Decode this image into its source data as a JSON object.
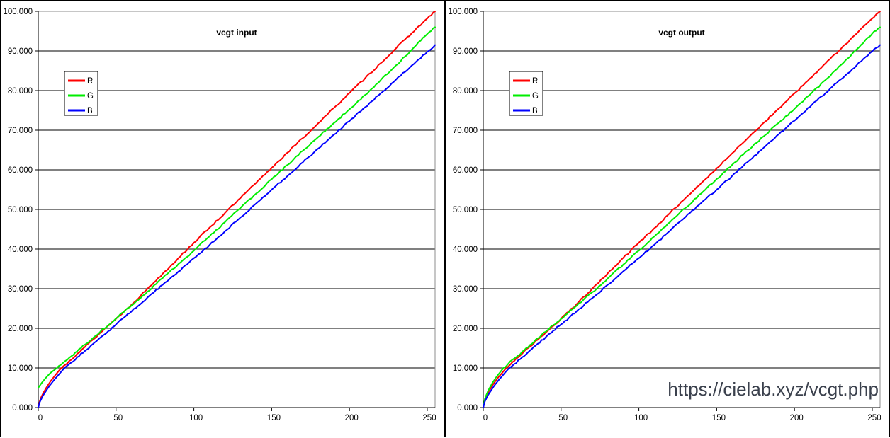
{
  "page": {
    "background": "#ffffff"
  },
  "watermark": {
    "text": "https://cielab.xyz/vcgt.php",
    "color": "#3b414d"
  },
  "chart_data": [
    {
      "type": "line",
      "title": "vcgt input",
      "xlabel": "",
      "ylabel": "",
      "xlim": [
        0,
        255
      ],
      "ylim": [
        0,
        100
      ],
      "grid": "horizontal",
      "grid_color": "#000000",
      "frame_color": "#8c8c8c",
      "x_ticks": [
        0,
        50,
        100,
        150,
        200,
        250
      ],
      "x_tick_labels": [
        "0",
        "50",
        "100",
        "150",
        "200",
        "250"
      ],
      "y_ticks": [
        100,
        90,
        80,
        70,
        60,
        50,
        40,
        30,
        20,
        10,
        0
      ],
      "y_tick_labels": [
        "100.000",
        "90.000",
        "80.000",
        "70.000",
        "60.000",
        "50.000",
        "40.000",
        "30.000",
        "20.000",
        "10.000",
        "0.000"
      ],
      "legend_position": "upper-left",
      "legend": [
        "R",
        "G",
        "B"
      ],
      "series": [
        {
          "name": "R",
          "color": "#ff0000",
          "points": [
            [
              0,
              0
            ],
            [
              1,
              1.7
            ],
            [
              2,
              2.7
            ],
            [
              3,
              3.5
            ],
            [
              4,
              4.2
            ],
            [
              5,
              4.9
            ],
            [
              6,
              5.5
            ],
            [
              7,
              6.1
            ],
            [
              8,
              6.7
            ],
            [
              9,
              7.2
            ],
            [
              10,
              7.7
            ],
            [
              12,
              8.7
            ],
            [
              14,
              9.6
            ],
            [
              15,
              10
            ],
            [
              20,
              11.8
            ],
            [
              25,
              13.6
            ],
            [
              30,
              15.3
            ],
            [
              35,
              17.1
            ],
            [
              40,
              18.9
            ],
            [
              45,
              20.7
            ],
            [
              50,
              22.4
            ],
            [
              55,
              24.2
            ],
            [
              60,
              26
            ],
            [
              70,
              29.9
            ],
            [
              80,
              33.8
            ],
            [
              90,
              37.7
            ],
            [
              100,
              41.6
            ],
            [
              110,
              45.4
            ],
            [
              120,
              49.1
            ],
            [
              130,
              52.9
            ],
            [
              140,
              56.7
            ],
            [
              150,
              60.5
            ],
            [
              160,
              64.3
            ],
            [
              170,
              68
            ],
            [
              180,
              71.8
            ],
            [
              190,
              75.6
            ],
            [
              200,
              79.4
            ],
            [
              210,
              83.1
            ],
            [
              220,
              86.9
            ],
            [
              230,
              90.7
            ],
            [
              240,
              94.5
            ],
            [
              250,
              98.2
            ],
            [
              255,
              100
            ]
          ]
        },
        {
          "name": "G",
          "color": "#00ee00",
          "points": [
            [
              0,
              5
            ],
            [
              2,
              6.1
            ],
            [
              4,
              7.1
            ],
            [
              6,
              8
            ],
            [
              8,
              8.8
            ],
            [
              10,
              9.4
            ],
            [
              12,
              10
            ],
            [
              16,
              11.3
            ],
            [
              20,
              12.6
            ],
            [
              25,
              14.2
            ],
            [
              30,
              15.9
            ],
            [
              35,
              17.5
            ],
            [
              40,
              19.2
            ],
            [
              45,
              20.8
            ],
            [
              50,
              22.5
            ],
            [
              55,
              24.1
            ],
            [
              60,
              25.8
            ],
            [
              70,
              29.2
            ],
            [
              80,
              32.7
            ],
            [
              90,
              36.2
            ],
            [
              100,
              39.6
            ],
            [
              110,
              43.2
            ],
            [
              120,
              46.8
            ],
            [
              130,
              50.4
            ],
            [
              140,
              54
            ],
            [
              150,
              57.6
            ],
            [
              160,
              61.2
            ],
            [
              170,
              64.8
            ],
            [
              180,
              68.3
            ],
            [
              190,
              71.8
            ],
            [
              200,
              75.3
            ],
            [
              210,
              78.9
            ],
            [
              220,
              82.6
            ],
            [
              230,
              86.4
            ],
            [
              240,
              90.3
            ],
            [
              250,
              94.3
            ],
            [
              255,
              96
            ]
          ]
        },
        {
          "name": "B",
          "color": "#0000ff",
          "points": [
            [
              0,
              0
            ],
            [
              1,
              1.4
            ],
            [
              2,
              2.2
            ],
            [
              3,
              3
            ],
            [
              4,
              3.6
            ],
            [
              5,
              4.2
            ],
            [
              6,
              4.8
            ],
            [
              7,
              5.4
            ],
            [
              8,
              5.9
            ],
            [
              9,
              6.4
            ],
            [
              10,
              6.9
            ],
            [
              12,
              7.8
            ],
            [
              14,
              8.7
            ],
            [
              16,
              9.6
            ],
            [
              18,
              10.4
            ],
            [
              20,
              11
            ],
            [
              25,
              12.7
            ],
            [
              30,
              14.3
            ],
            [
              35,
              16
            ],
            [
              40,
              17.7
            ],
            [
              45,
              19.3
            ],
            [
              50,
              21
            ],
            [
              55,
              22.7
            ],
            [
              60,
              24.3
            ],
            [
              70,
              27.7
            ],
            [
              80,
              31
            ],
            [
              90,
              34.3
            ],
            [
              100,
              37.7
            ],
            [
              110,
              41
            ],
            [
              120,
              44.5
            ],
            [
              130,
              48
            ],
            [
              140,
              51.5
            ],
            [
              150,
              55
            ],
            [
              160,
              58.4
            ],
            [
              170,
              61.9
            ],
            [
              180,
              65.4
            ],
            [
              190,
              68.9
            ],
            [
              200,
              72.3
            ],
            [
              210,
              75.8
            ],
            [
              220,
              79.3
            ],
            [
              230,
              82.8
            ],
            [
              240,
              86.3
            ],
            [
              250,
              89.8
            ],
            [
              255,
              91.5
            ]
          ]
        }
      ]
    },
    {
      "type": "line",
      "title": "vcgt output",
      "xlabel": "",
      "ylabel": "",
      "xlim": [
        0,
        255
      ],
      "ylim": [
        0,
        100
      ],
      "grid": "horizontal",
      "grid_color": "#000000",
      "frame_color": "#8c8c8c",
      "x_ticks": [
        0,
        50,
        100,
        150,
        200,
        250
      ],
      "x_tick_labels": [
        "0",
        "50",
        "100",
        "150",
        "200",
        "250"
      ],
      "y_ticks": [
        100,
        90,
        80,
        70,
        60,
        50,
        40,
        30,
        20,
        10,
        0
      ],
      "y_tick_labels": [
        "100.000",
        "90.000",
        "80.000",
        "70.000",
        "60.000",
        "50.000",
        "40.000",
        "30.000",
        "20.000",
        "10.000",
        "0.000"
      ],
      "legend_position": "upper-left",
      "legend": [
        "R",
        "G",
        "B"
      ],
      "series": [
        {
          "name": "R",
          "color": "#ff0000",
          "points": [
            [
              0,
              0
            ],
            [
              1,
              1.9
            ],
            [
              2,
              2.9
            ],
            [
              3,
              3.7
            ],
            [
              4,
              4.4
            ],
            [
              5,
              5
            ],
            [
              6,
              5.7
            ],
            [
              7,
              6.2
            ],
            [
              8,
              6.8
            ],
            [
              9,
              7.3
            ],
            [
              10,
              7.8
            ],
            [
              12,
              8.7
            ],
            [
              14,
              9.6
            ],
            [
              15,
              10
            ],
            [
              20,
              11.8
            ],
            [
              25,
              13.6
            ],
            [
              30,
              15.4
            ],
            [
              35,
              17.1
            ],
            [
              40,
              18.9
            ],
            [
              45,
              20.6
            ],
            [
              50,
              22.4
            ],
            [
              55,
              24.2
            ],
            [
              60,
              26.1
            ],
            [
              70,
              30
            ],
            [
              80,
              33.9
            ],
            [
              90,
              37.8
            ],
            [
              100,
              41.6
            ],
            [
              110,
              45.3
            ],
            [
              120,
              49.1
            ],
            [
              130,
              52.9
            ],
            [
              140,
              56.6
            ],
            [
              150,
              60.4
            ],
            [
              160,
              64.2
            ],
            [
              170,
              68
            ],
            [
              180,
              71.8
            ],
            [
              190,
              75.5
            ],
            [
              200,
              79.3
            ],
            [
              210,
              83.1
            ],
            [
              220,
              86.9
            ],
            [
              230,
              90.6
            ],
            [
              240,
              94.4
            ],
            [
              250,
              98.2
            ],
            [
              255,
              100
            ]
          ]
        },
        {
          "name": "G",
          "color": "#00ee00",
          "points": [
            [
              0,
              0
            ],
            [
              1,
              2.1
            ],
            [
              2,
              3.2
            ],
            [
              3,
              4.1
            ],
            [
              4,
              4.9
            ],
            [
              5,
              5.6
            ],
            [
              6,
              6.3
            ],
            [
              7,
              6.9
            ],
            [
              8,
              7.5
            ],
            [
              9,
              8
            ],
            [
              10,
              8.5
            ],
            [
              12,
              9.5
            ],
            [
              13,
              10
            ],
            [
              16,
              11
            ],
            [
              20,
              12.4
            ],
            [
              25,
              14.1
            ],
            [
              30,
              15.8
            ],
            [
              35,
              17.5
            ],
            [
              40,
              19.1
            ],
            [
              45,
              20.8
            ],
            [
              50,
              22.4
            ],
            [
              55,
              24.1
            ],
            [
              60,
              25.7
            ],
            [
              70,
              29.1
            ],
            [
              80,
              32.6
            ],
            [
              90,
              36.1
            ],
            [
              100,
              39.6
            ],
            [
              110,
              43.2
            ],
            [
              120,
              46.8
            ],
            [
              130,
              50.4
            ],
            [
              140,
              54
            ],
            [
              150,
              57.7
            ],
            [
              160,
              61.3
            ],
            [
              170,
              64.9
            ],
            [
              180,
              68.4
            ],
            [
              190,
              71.9
            ],
            [
              200,
              75.4
            ],
            [
              210,
              79
            ],
            [
              220,
              82.7
            ],
            [
              230,
              86.5
            ],
            [
              240,
              90.4
            ],
            [
              250,
              94.4
            ],
            [
              255,
              96
            ]
          ]
        },
        {
          "name": "B",
          "color": "#0000ff",
          "points": [
            [
              0,
              0
            ],
            [
              1,
              1.5
            ],
            [
              2,
              2.3
            ],
            [
              3,
              3.1
            ],
            [
              4,
              3.7
            ],
            [
              5,
              4.3
            ],
            [
              6,
              4.9
            ],
            [
              7,
              5.5
            ],
            [
              8,
              6
            ],
            [
              9,
              6.5
            ],
            [
              10,
              7
            ],
            [
              12,
              7.9
            ],
            [
              14,
              8.8
            ],
            [
              16,
              9.7
            ],
            [
              17,
              10
            ],
            [
              20,
              11
            ],
            [
              25,
              12.7
            ],
            [
              30,
              14.4
            ],
            [
              35,
              16.1
            ],
            [
              40,
              17.7
            ],
            [
              45,
              19.4
            ],
            [
              50,
              21
            ],
            [
              55,
              22.6
            ],
            [
              60,
              24.3
            ],
            [
              70,
              27.6
            ],
            [
              80,
              31
            ],
            [
              90,
              34.4
            ],
            [
              100,
              37.7
            ],
            [
              110,
              41.1
            ],
            [
              120,
              44.6
            ],
            [
              130,
              48.1
            ],
            [
              140,
              51.6
            ],
            [
              150,
              55
            ],
            [
              160,
              58.5
            ],
            [
              170,
              62
            ],
            [
              180,
              65.5
            ],
            [
              190,
              69
            ],
            [
              200,
              72.4
            ],
            [
              210,
              75.9
            ],
            [
              220,
              79.4
            ],
            [
              230,
              82.9
            ],
            [
              240,
              86.4
            ],
            [
              250,
              89.9
            ],
            [
              255,
              91.5
            ]
          ]
        }
      ]
    }
  ]
}
